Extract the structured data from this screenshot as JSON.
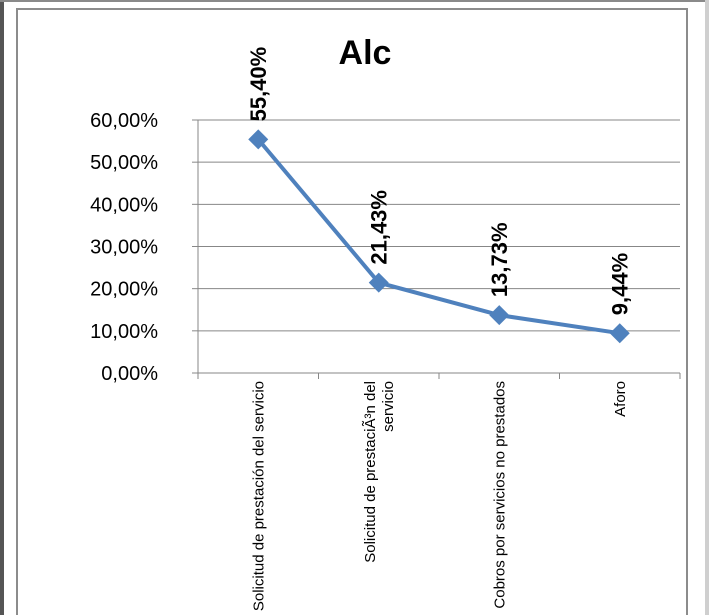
{
  "chart_data": {
    "type": "line",
    "title": "Alc",
    "categories": [
      [
        "Solicitud de prestación del servicio"
      ],
      [
        "Solicitud de prestaciÃ³n del",
        "servicio"
      ],
      [
        "Cobros por servicios no prestados"
      ],
      [
        "Aforo"
      ]
    ],
    "series": [
      {
        "values": [
          55.4,
          21.43,
          13.73,
          9.44
        ]
      }
    ],
    "data_labels": [
      "55,40%",
      "21,43%",
      "13,73%",
      "9,44%"
    ],
    "yticks": [
      "0,00%",
      "10,00%",
      "20,00%",
      "30,00%",
      "40,00%",
      "50,00%",
      "60,00%"
    ],
    "ylim": [
      0,
      60
    ],
    "grid": true,
    "legend": "none",
    "colors": {
      "line": "#4f81bd",
      "grid": "#878787",
      "axis": "#878787"
    }
  }
}
